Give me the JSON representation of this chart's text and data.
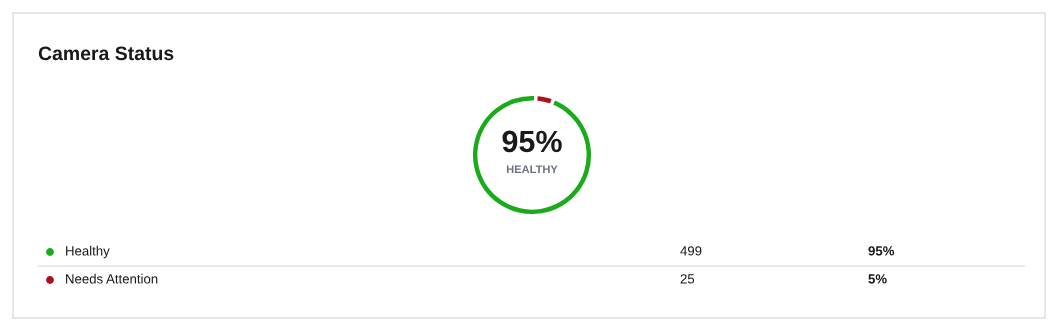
{
  "chart_data": {
    "type": "donut",
    "title": "Camera Status",
    "categories": [
      "Healthy",
      "Needs Attention"
    ],
    "values": [
      499,
      25
    ],
    "colors": [
      "#1aab1a",
      "#b0101e"
    ],
    "value_labels": [
      "499",
      "25"
    ],
    "annotations": [
      "95%",
      "HEALTHY",
      "95%",
      "5%"
    ],
    "legend": "bottom"
  }
}
